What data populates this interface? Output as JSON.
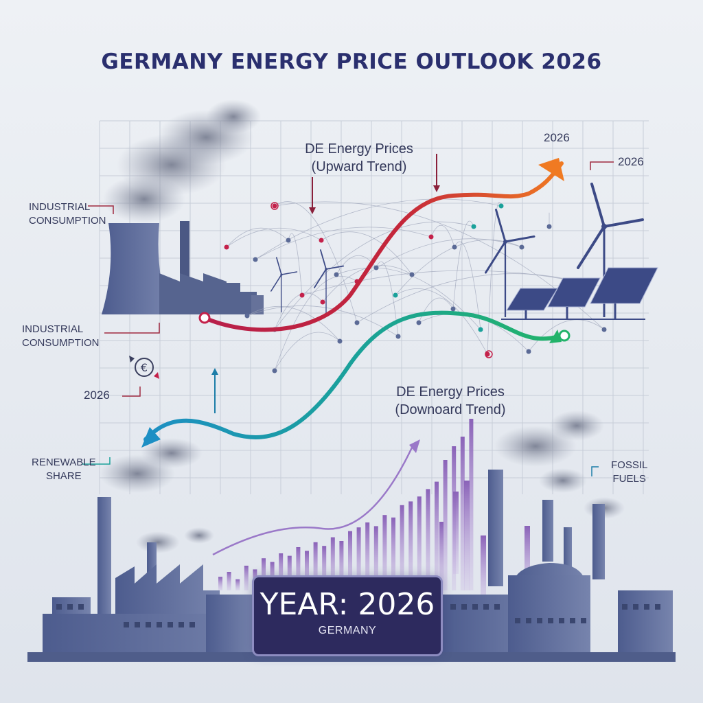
{
  "title": "GERMANY ENERGY PRICE OUTLOOK 2026",
  "labels": {
    "industrial_top": [
      "INDUSTRIAL",
      "CONSUMPTION"
    ],
    "industrial_mid": [
      "INDUSTRIAL",
      "CONSUMPTION"
    ],
    "renewable": [
      "RENEWABLE",
      "SHARE"
    ],
    "fossil": [
      "FOSSIL",
      "FUELS"
    ],
    "upward": [
      "DE Energy Prices",
      "(Upward Trend)"
    ],
    "downward": [
      "DE Energy Prices",
      "(Downoard Trend)"
    ],
    "year_top": "2026",
    "year_right": "2026",
    "year_left": "2026"
  },
  "icons": {
    "euro": "euro-cycle-icon"
  },
  "colors": {
    "title": "#2a2f6e",
    "upward_start": "#b81f4a",
    "upward_end": "#f07a22",
    "downward_start": "#1d8fc4",
    "downward_end": "#22b36a",
    "bars": "#8a62b8",
    "badge_bg": "#2d2a5e",
    "industry": "#5b6a96"
  },
  "badge": {
    "year_text": "YEAR: 2026",
    "country": "GERMANY"
  }
}
